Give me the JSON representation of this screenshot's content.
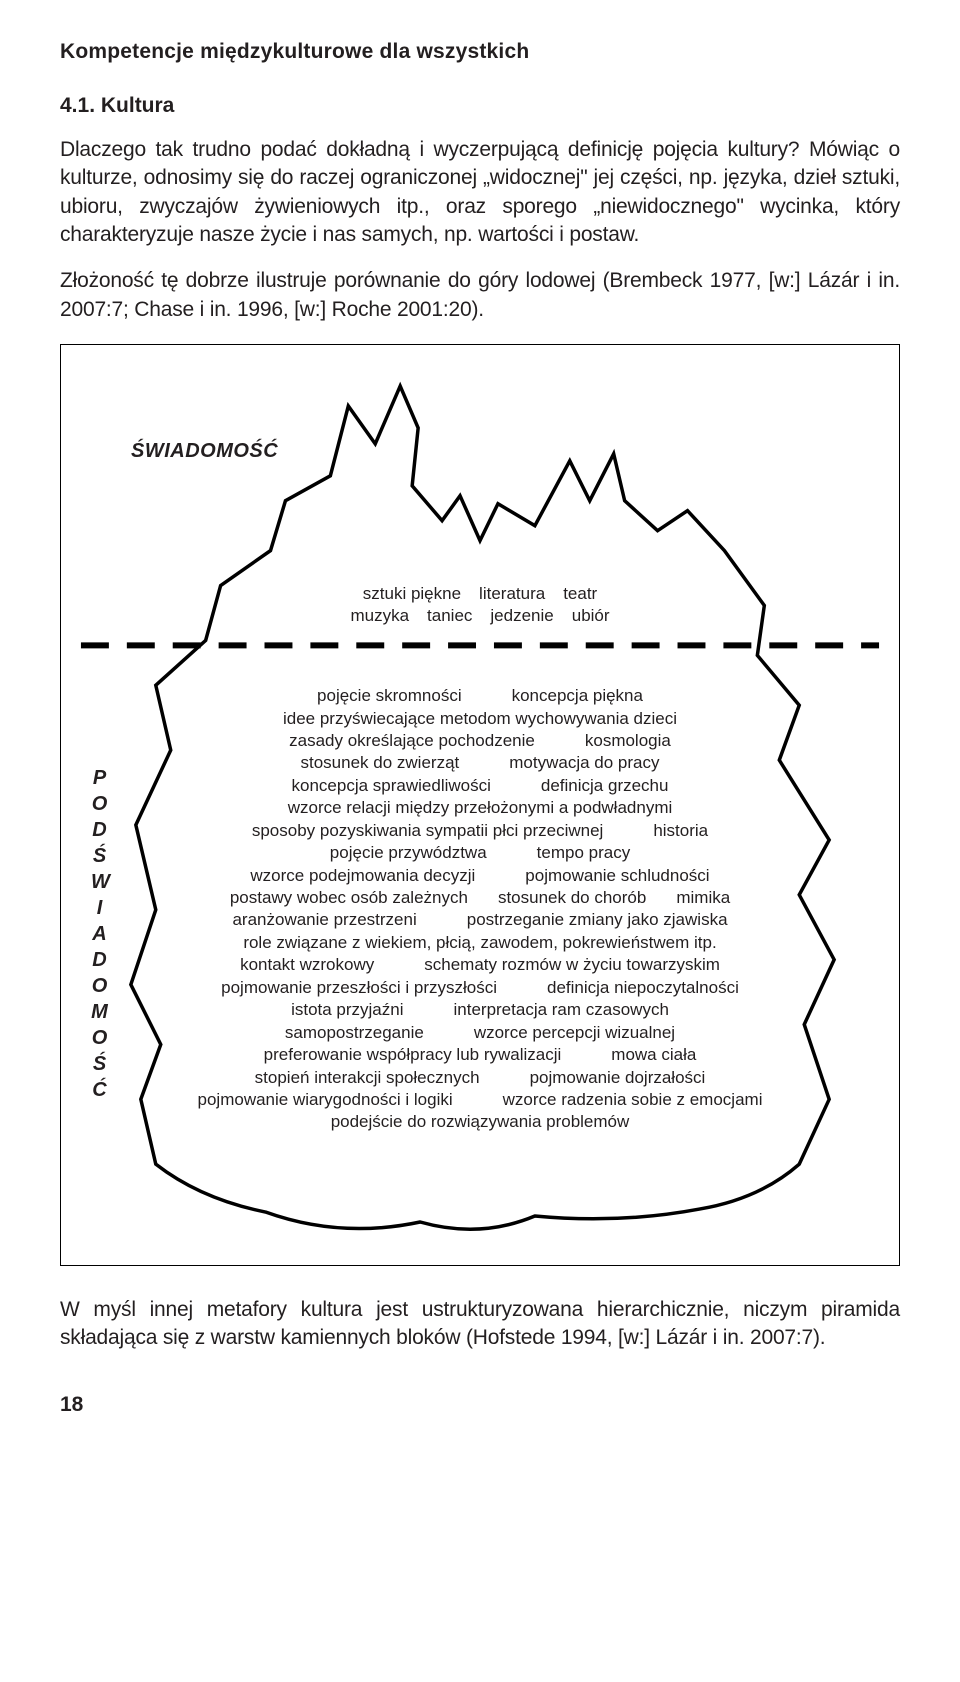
{
  "header": "Kompetencje międzykulturowe dla wszystkich",
  "section_number": "4.1. Kultura",
  "para1": "Dlaczego tak trudno podać dokładną i wyczerpującą definicję pojęcia kultury? Mówiąc o kulturze, odnosimy się do raczej ograniczonej „widocznej\" jej części, np. języka, dzieł sztuki, ubioru, zwyczajów żywieniowych itp., oraz sporego „niewidocznego\" wycinka, który charakteryzuje nasze życie i nas samych, np. wartości i postaw.",
  "para2": "Złożoność tę dobrze ilustruje porównanie do góry lodowej (Brembeck 1977, [w:] Lázár i in. 2007:7; Chase i in. 1996, [w:] Roche 2001:20).",
  "para3": "W myśl innej metafory kultura jest ustrukturyzowana hierarchicznie, niczym piramida składająca się z warstw kamiennych bloków (Hofstede 1994, [w:] Lázár i in. 2007:7).",
  "page_number": "18",
  "figure": {
    "awareness_label": "ŚWIADOMOŚĆ",
    "vertical_label": "PODŚWIADOMOŚĆ",
    "tip_line1_items": [
      "sztuki piękne",
      "literatura",
      "teatr"
    ],
    "tip_line2_items": [
      "muzyka",
      "taniec",
      "jedzenie",
      "ubiór"
    ],
    "below_lines": [
      [
        "pojęcie skromności",
        "koncepcja piękna"
      ],
      [
        "idee przyświecające metodom wychowywania dzieci"
      ],
      [
        "zasady określające pochodzenie",
        "kosmologia"
      ],
      [
        "stosunek do zwierząt",
        "motywacja do pracy"
      ],
      [
        "koncepcja sprawiedliwości",
        "definicja grzechu"
      ],
      [
        "wzorce relacji między przełożonymi a podwładnymi"
      ],
      [
        "sposoby pozyskiwania sympatii płci przeciwnej",
        "historia"
      ],
      [
        "pojęcie przywództwa",
        "tempo pracy"
      ],
      [
        "wzorce podejmowania decyzji",
        "pojmowanie schludności"
      ],
      [
        "postawy wobec osób zależnych",
        "stosunek do chorób",
        "mimika"
      ],
      [
        "aranżowanie przestrzeni",
        "postrzeganie zmiany jako zjawiska"
      ],
      [
        "role związane z wiekiem, płcią, zawodem, pokrewieństwem itp."
      ],
      [
        "kontakt wzrokowy",
        "schematy rozmów w życiu towarzyskim"
      ],
      [
        "pojmowanie przeszłości i przyszłości",
        "definicja niepoczytalności"
      ],
      [
        "istota przyjaźni",
        "interpretacja ram czasowych"
      ],
      [
        "samopostrzeganie",
        "wzorce percepcji wizualnej"
      ],
      [
        "preferowanie współpracy lub rywalizacji",
        "mowa ciała"
      ],
      [
        "stopień interakcji społecznych",
        "pojmowanie dojrzałości"
      ],
      [
        "pojmowanie wiarygodności i logiki",
        "wzorce radzenia sobie z emocjami"
      ],
      [
        "podejście do rozwiązywania problemów"
      ]
    ],
    "outline_color": "#000000",
    "outline_width": 3.5,
    "waterline_color": "#000000",
    "waterline_dash": "28,18",
    "waterline_width": 6
  }
}
